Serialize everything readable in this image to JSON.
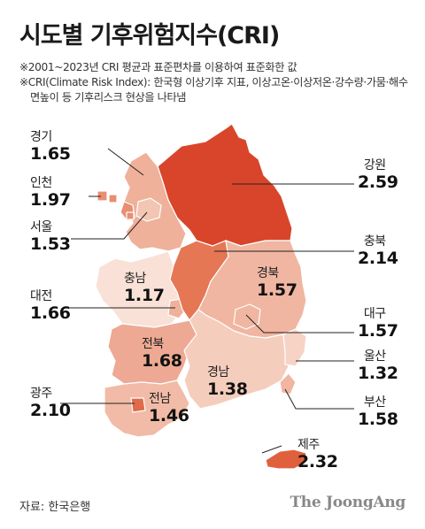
{
  "title": "시도별 기후위험지수(CRI)",
  "notes": [
    "※2001~2023년 CRI 평균과 표준편차를 이용하여 표준화한 값",
    "※CRI(Climate Risk Index): 한국형 이상기후 지표, 이상고온·이상저온·강수량·가뭄·해수면높이 등 기후리스크 현상을 나타냄"
  ],
  "regions": [
    {
      "name": "경기",
      "value": "1.65",
      "cri": 1.65,
      "color": "#efb19a"
    },
    {
      "name": "인천",
      "value": "1.97",
      "cri": 1.97,
      "color": "#e88e72"
    },
    {
      "name": "서울",
      "value": "1.53",
      "cri": 1.53,
      "color": "#f3c5b3"
    },
    {
      "name": "대전",
      "value": "1.66",
      "cri": 1.66,
      "color": "#efb19a"
    },
    {
      "name": "충남",
      "value": "1.17",
      "cri": 1.17,
      "color": "#f9e1d7"
    },
    {
      "name": "전북",
      "value": "1.68",
      "cri": 1.68,
      "color": "#eda993"
    },
    {
      "name": "광주",
      "value": "2.10",
      "cri": 2.1,
      "color": "#e06a49"
    },
    {
      "name": "전남",
      "value": "1.46",
      "cri": 1.46,
      "color": "#f1bba7"
    },
    {
      "name": "강원",
      "value": "2.59",
      "cri": 2.59,
      "color": "#d9452a"
    },
    {
      "name": "충북",
      "value": "2.14",
      "cri": 2.14,
      "color": "#e57755"
    },
    {
      "name": "경북",
      "value": "1.57",
      "cri": 1.57,
      "color": "#f0b6a1"
    },
    {
      "name": "대구",
      "value": "1.57",
      "cri": 1.57,
      "color": "#f0b6a1"
    },
    {
      "name": "울산",
      "value": "1.32",
      "cri": 1.32,
      "color": "#f6d3c5"
    },
    {
      "name": "경남",
      "value": "1.38",
      "cri": 1.38,
      "color": "#f5cdbd"
    },
    {
      "name": "부산",
      "value": "1.58",
      "cri": 1.58,
      "color": "#f0b6a1"
    },
    {
      "name": "제주",
      "value": "2.32",
      "cri": 2.32,
      "color": "#e0603e"
    }
  ],
  "source": "자료: 한국은행",
  "brand": "The JoongAng"
}
